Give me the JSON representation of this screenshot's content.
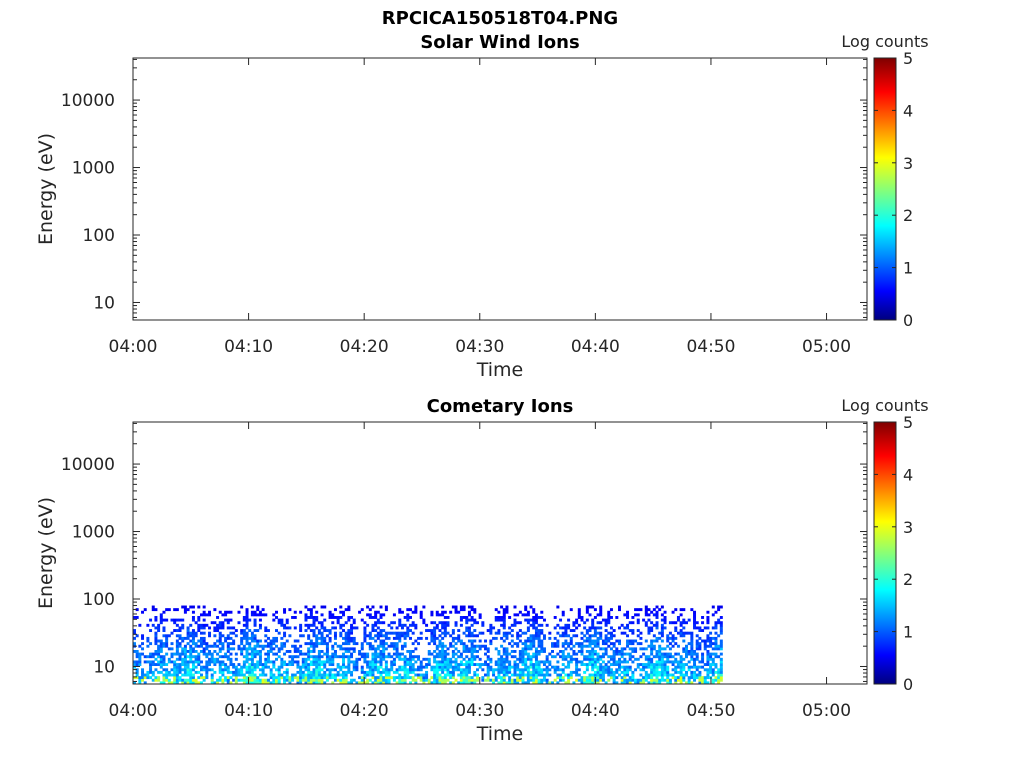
{
  "figure_title": "RPCICA150518T04.PNG",
  "chart_data": [
    {
      "type": "heatmap",
      "title": "Solar Wind Ions",
      "xlabel": "Time",
      "ylabel": "Energy (eV)",
      "x_ticks": [
        "04:00",
        "04:10",
        "04:20",
        "04:30",
        "04:40",
        "04:50",
        "05:00"
      ],
      "x_range_minutes": [
        0,
        63.5
      ],
      "y_ticks": [
        "10",
        "100",
        "1000",
        "10000"
      ],
      "y_scale": "log",
      "y_range": [
        5.5,
        42000
      ],
      "colorbar": {
        "label": "Log counts",
        "ticks": [
          "0",
          "1",
          "2",
          "3",
          "4",
          "5"
        ],
        "range": [
          0,
          5
        ],
        "colormap": "jet"
      },
      "data_extent": null
    },
    {
      "type": "heatmap",
      "title": "Cometary Ions",
      "xlabel": "Time",
      "ylabel": "Energy (eV)",
      "x_ticks": [
        "04:00",
        "04:10",
        "04:20",
        "04:30",
        "04:40",
        "04:50",
        "05:00"
      ],
      "x_range_minutes": [
        0,
        63.5
      ],
      "y_ticks": [
        "10",
        "100",
        "1000",
        "10000"
      ],
      "y_scale": "log",
      "y_range": [
        5.5,
        42000
      ],
      "colorbar": {
        "label": "Log counts",
        "ticks": [
          "0",
          "1",
          "2",
          "3",
          "4",
          "5"
        ],
        "range": [
          0,
          5
        ],
        "colormap": "jet"
      },
      "data_extent": {
        "time_start": "04:00",
        "time_end": "04:51",
        "energy_max_ev": 80,
        "energy_min_ev": 5.5,
        "typical_log_counts": [
          0.5,
          2.5
        ]
      }
    }
  ]
}
